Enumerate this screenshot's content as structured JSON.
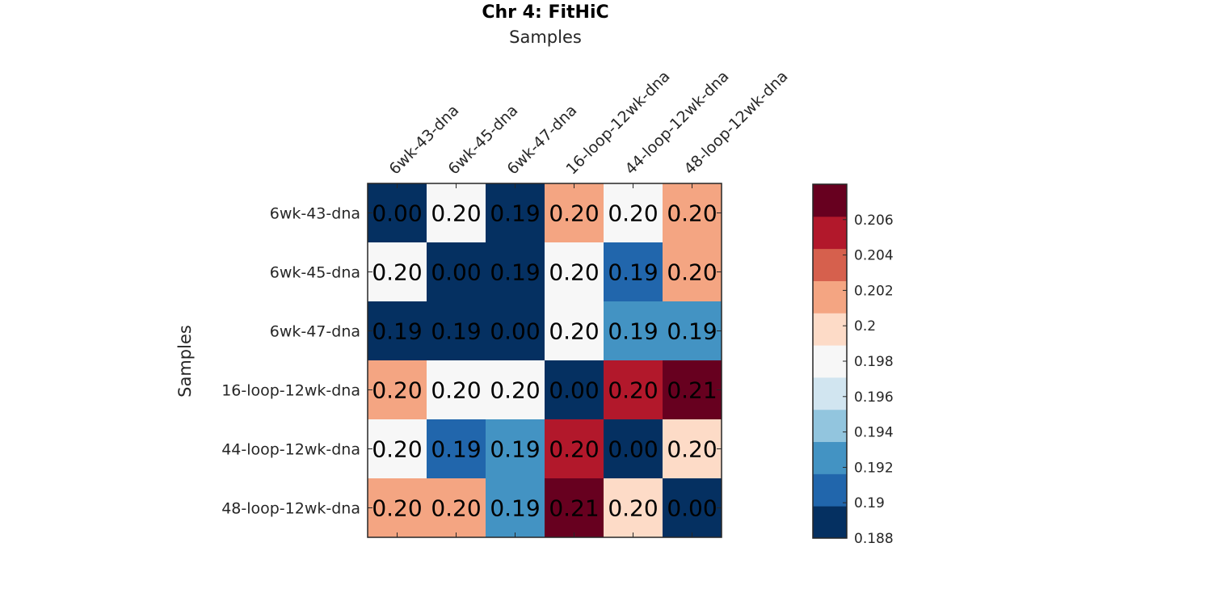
{
  "chart_data": {
    "type": "heatmap",
    "title": "Chr 4: FitHiC",
    "xlabel": "Samples",
    "ylabel": "Samples",
    "x_categories": [
      "6wk-43-dna",
      "6wk-45-dna",
      "6wk-47-dna",
      "16-loop-12wk-dna",
      "44-loop-12wk-dna",
      "48-loop-12wk-dna"
    ],
    "y_categories": [
      "6wk-43-dna",
      "6wk-45-dna",
      "6wk-47-dna",
      "16-loop-12wk-dna",
      "44-loop-12wk-dna",
      "48-loop-12wk-dna"
    ],
    "values": [
      [
        0.0,
        0.198,
        0.189,
        0.201,
        0.198,
        0.201
      ],
      [
        0.198,
        0.0,
        0.189,
        0.198,
        0.191,
        0.201
      ],
      [
        0.189,
        0.189,
        0.0,
        0.198,
        0.193,
        0.193
      ],
      [
        0.201,
        0.198,
        0.198,
        0.0,
        0.205,
        0.207
      ],
      [
        0.198,
        0.191,
        0.193,
        0.205,
        0.0,
        0.199
      ],
      [
        0.201,
        0.201,
        0.193,
        0.207,
        0.199,
        0.0
      ]
    ],
    "cell_labels": [
      [
        "0.00",
        "0.20",
        "0.19",
        "0.20",
        "0.20",
        "0.20"
      ],
      [
        "0.20",
        "0.00",
        "0.19",
        "0.20",
        "0.19",
        "0.20"
      ],
      [
        "0.19",
        "0.19",
        "0.00",
        "0.20",
        "0.19",
        "0.19"
      ],
      [
        "0.20",
        "0.20",
        "0.20",
        "0.00",
        "0.20",
        "0.21"
      ],
      [
        "0.20",
        "0.19",
        "0.19",
        "0.20",
        "0.00",
        "0.20"
      ],
      [
        "0.20",
        "0.20",
        "0.19",
        "0.21",
        "0.20",
        "0.00"
      ]
    ],
    "colorbar": {
      "range": [
        0.188,
        0.208
      ],
      "tick_values": [
        0.188,
        0.19,
        0.192,
        0.194,
        0.196,
        0.198,
        0.2,
        0.202,
        0.204,
        0.206
      ],
      "tick_labels": [
        "0.188",
        "0.19",
        "0.192",
        "0.194",
        "0.196",
        "0.198",
        "0.2",
        "0.202",
        "0.204",
        "0.206"
      ],
      "colors": [
        "#053061",
        "#2166ac",
        "#4393c3",
        "#92c5de",
        "#d1e5f0",
        "#f7f7f7",
        "#fddbc7",
        "#f4a582",
        "#d6604d",
        "#b2182b",
        "#67001f"
      ],
      "legend_position": "right"
    },
    "grid": false
  }
}
